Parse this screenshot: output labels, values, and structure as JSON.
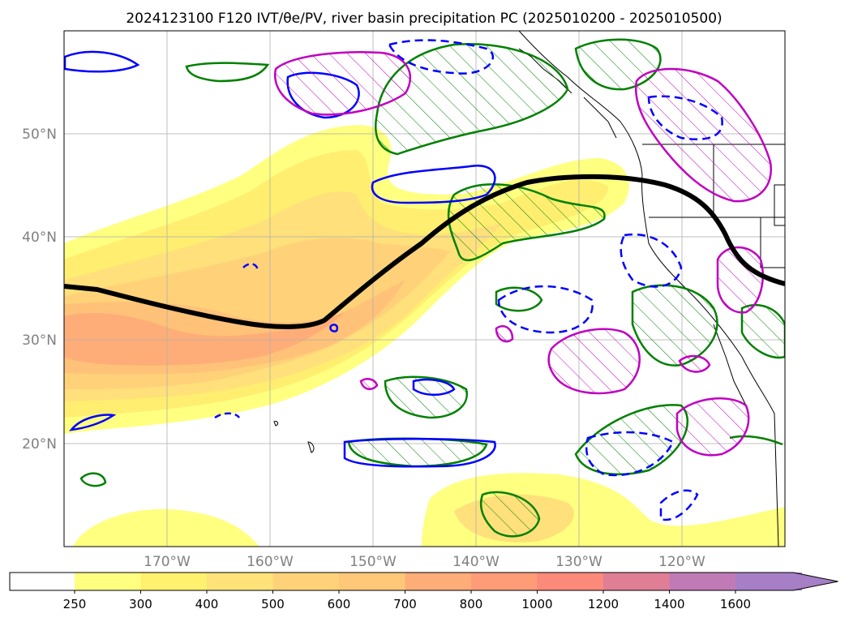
{
  "title": "2024123100 F120 IVT/θe/PV, river basin precipitation PC (2025010200 - 2025010500)",
  "map": {
    "lat_labels": [
      "50°N",
      "40°N",
      "30°N",
      "20°N"
    ],
    "lon_labels": [
      "170°W",
      "160°W",
      "150°W",
      "140°W",
      "130°W",
      "120°W"
    ],
    "lat_range": [
      10,
      60
    ],
    "lon_range": [
      -180,
      -110
    ],
    "gridlines": true
  },
  "colorbar": {
    "levels": [
      "250",
      "300",
      "400",
      "500",
      "600",
      "700",
      "800",
      "1000",
      "1200",
      "1400",
      "1600"
    ],
    "colors": [
      "#ffff80",
      "#fff06e",
      "#ffe27a",
      "#ffd27a",
      "#ffc878",
      "#ffad78",
      "#ff9c78",
      "#fc8a7a",
      "#e07e96",
      "#c07ab6",
      "#a67fc6"
    ],
    "extend": "max"
  },
  "colors": {
    "ivt_low": "#ffff80",
    "ivt_mid": "#ffd27a",
    "ivt_high": "#ffad78",
    "theta_e_line": "#000000",
    "pv_positive": "#0000ff",
    "precip_pc_positive": "#008000",
    "precip_pc_strong": "#c000c0"
  }
}
